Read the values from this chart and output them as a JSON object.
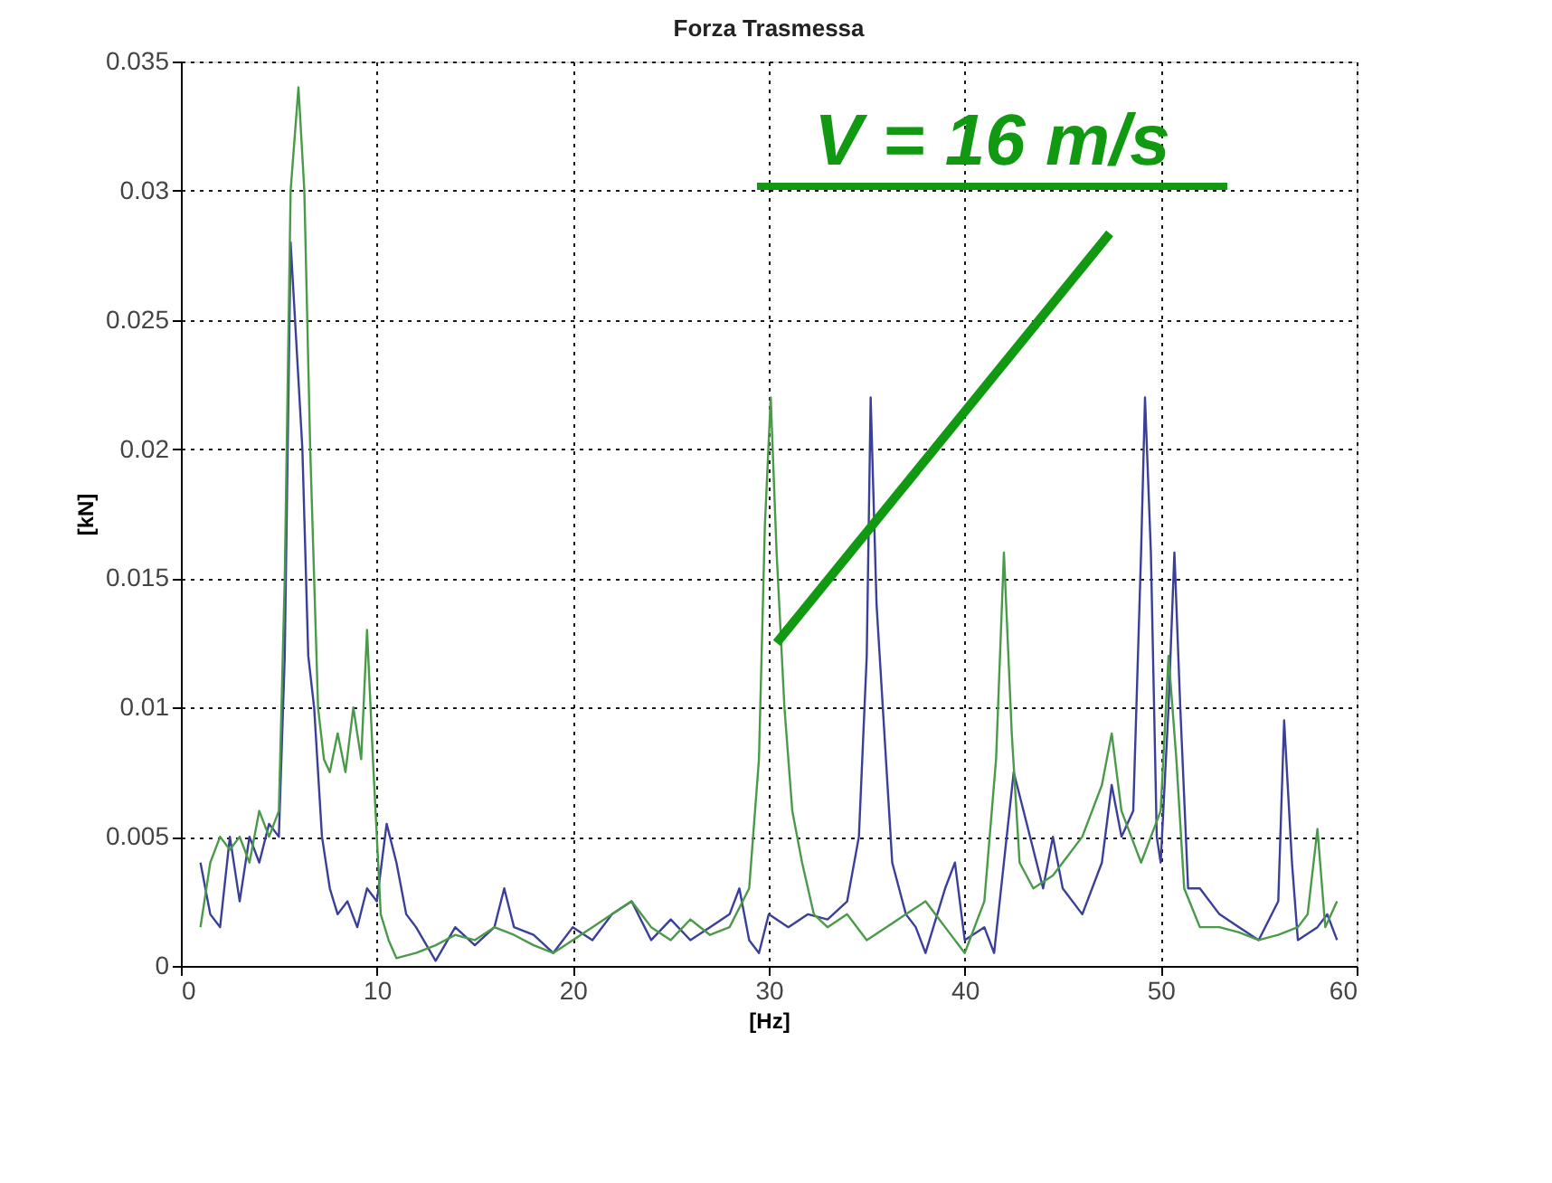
{
  "chart_data": {
    "type": "line",
    "title": "Forza Trasmessa",
    "xlabel": "[Hz]",
    "ylabel": "[kN]",
    "xlim": [
      0,
      60
    ],
    "xticks": [
      0,
      10,
      20,
      30,
      40,
      50,
      60
    ],
    "ylim": [
      0,
      0.035
    ],
    "yticks": [
      0,
      0.005,
      0.01,
      0.015,
      0.02,
      0.025,
      0.03,
      0.035
    ],
    "grid": true,
    "line_style": "solid",
    "annotations": [
      {
        "text": "V = 16 m/s",
        "x": 30.4,
        "y": 0.0125
      }
    ],
    "series": [
      {
        "color": "#3a3f9a",
        "x": [
          1,
          1.5,
          2,
          2.5,
          3,
          3.5,
          4,
          4.5,
          5,
          5.3,
          5.6,
          5.9,
          6.2,
          6.5,
          6.8,
          7.2,
          7.6,
          8,
          8.5,
          9,
          9.5,
          10,
          10.5,
          11,
          11.5,
          12,
          13,
          14,
          15,
          16,
          16.5,
          17,
          18,
          19,
          20,
          21,
          22,
          23,
          24,
          25,
          26,
          27,
          28,
          28.5,
          29,
          29.5,
          30,
          31,
          32,
          33,
          34,
          34.6,
          35,
          35.2,
          35.5,
          35.9,
          36.3,
          37,
          37.5,
          38,
          39,
          39.5,
          40,
          41,
          41.5,
          42,
          42.5,
          43,
          44,
          44.5,
          45,
          46,
          47,
          47.5,
          48,
          48.6,
          49,
          49.2,
          49.5,
          49.8,
          50,
          50.4,
          50.7,
          51,
          51.4,
          52,
          53,
          54,
          55,
          56,
          56.3,
          56.7,
          57,
          58,
          58.5,
          59
        ],
        "values": [
          0.004,
          0.002,
          0.0015,
          0.005,
          0.0025,
          0.005,
          0.004,
          0.0055,
          0.005,
          0.012,
          0.028,
          0.024,
          0.02,
          0.012,
          0.01,
          0.005,
          0.003,
          0.002,
          0.0025,
          0.0015,
          0.003,
          0.0025,
          0.0055,
          0.004,
          0.002,
          0.0015,
          0.0002,
          0.0015,
          0.0008,
          0.0015,
          0.003,
          0.0015,
          0.0012,
          0.0005,
          0.0015,
          0.001,
          0.002,
          0.0025,
          0.001,
          0.0018,
          0.001,
          0.0015,
          0.002,
          0.003,
          0.001,
          0.0005,
          0.002,
          0.0015,
          0.002,
          0.0018,
          0.0025,
          0.005,
          0.012,
          0.022,
          0.014,
          0.009,
          0.004,
          0.002,
          0.0015,
          0.0005,
          0.003,
          0.004,
          0.001,
          0.0015,
          0.0005,
          0.004,
          0.0075,
          0.006,
          0.003,
          0.005,
          0.003,
          0.002,
          0.004,
          0.007,
          0.005,
          0.006,
          0.016,
          0.022,
          0.016,
          0.005,
          0.004,
          0.01,
          0.016,
          0.01,
          0.003,
          0.003,
          0.002,
          0.0015,
          0.001,
          0.0025,
          0.0095,
          0.004,
          0.001,
          0.0015,
          0.002,
          0.001
        ]
      },
      {
        "color": "#4a9a4a",
        "x": [
          1,
          1.5,
          2,
          2.5,
          3,
          3.5,
          4,
          4.5,
          5,
          5.3,
          5.6,
          6,
          6.3,
          6.6,
          7,
          7.3,
          7.6,
          8,
          8.4,
          8.8,
          9.2,
          9.5,
          9.8,
          10.2,
          10.6,
          11,
          12,
          13,
          14,
          15,
          16,
          17,
          18,
          19,
          20,
          21,
          22,
          23,
          24,
          25,
          26,
          27,
          28,
          29,
          29.5,
          29.8,
          30.1,
          30.4,
          30.8,
          31.2,
          31.7,
          32.3,
          33,
          34,
          35,
          36,
          37,
          38,
          39,
          40,
          41,
          41.6,
          42,
          42.4,
          42.8,
          43.5,
          44.5,
          45,
          46,
          47,
          47.5,
          48,
          48.5,
          49,
          50,
          50.4,
          50.8,
          51.2,
          52,
          53,
          54,
          55,
          56,
          57,
          57.5,
          58,
          58.4,
          59
        ],
        "values": [
          0.0015,
          0.004,
          0.005,
          0.0045,
          0.005,
          0.004,
          0.006,
          0.005,
          0.006,
          0.015,
          0.03,
          0.034,
          0.03,
          0.02,
          0.01,
          0.008,
          0.0075,
          0.009,
          0.0075,
          0.01,
          0.008,
          0.013,
          0.008,
          0.002,
          0.001,
          0.0003,
          0.0005,
          0.0008,
          0.0012,
          0.001,
          0.0015,
          0.0012,
          0.0008,
          0.0005,
          0.001,
          0.0015,
          0.002,
          0.0025,
          0.0015,
          0.001,
          0.0018,
          0.0012,
          0.0015,
          0.003,
          0.008,
          0.017,
          0.022,
          0.016,
          0.01,
          0.006,
          0.004,
          0.002,
          0.0015,
          0.002,
          0.001,
          0.0015,
          0.002,
          0.0025,
          0.0015,
          0.0005,
          0.0025,
          0.008,
          0.016,
          0.009,
          0.004,
          0.003,
          0.0035,
          0.004,
          0.005,
          0.007,
          0.009,
          0.006,
          0.005,
          0.004,
          0.006,
          0.012,
          0.008,
          0.003,
          0.0015,
          0.0015,
          0.0013,
          0.001,
          0.0012,
          0.0015,
          0.002,
          0.0053,
          0.0015,
          0.0025
        ]
      }
    ]
  }
}
